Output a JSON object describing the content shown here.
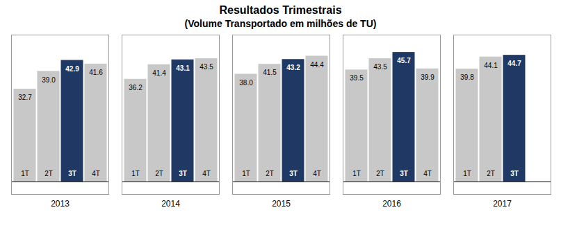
{
  "chart_data": {
    "type": "bar",
    "title": "Resultados Trimestrais",
    "subtitle": "(Volume Transportado em milhões de TU)",
    "categories": [
      "1T",
      "2T",
      "3T",
      "4T",
      "1T",
      "2T",
      "3T",
      "4T",
      "1T",
      "2T",
      "3T",
      "4T",
      "1T",
      "2T",
      "3T",
      "4T",
      "1T",
      "2T",
      "3T"
    ],
    "groups": [
      "2013",
      "2013",
      "2013",
      "2013",
      "2014",
      "2014",
      "2014",
      "2014",
      "2015",
      "2015",
      "2015",
      "2015",
      "2016",
      "2016",
      "2016",
      "2016",
      "2017",
      "2017",
      "2017"
    ],
    "values": [
      32.7,
      39.0,
      42.9,
      41.6,
      36.2,
      41.4,
      43.1,
      43.5,
      38.0,
      41.5,
      43.2,
      44.4,
      39.5,
      43.5,
      45.7,
      39.9,
      39.8,
      44.1,
      44.7
    ],
    "value_labels": [
      "32.7",
      "39.0",
      "42.9",
      "41.6",
      "36.2",
      "41.4",
      "43.1",
      "43.5",
      "38.0",
      "41.5",
      "43.2",
      "44.4",
      "39.5",
      "43.5",
      "45.7",
      "39.9",
      "39.8",
      "44.1",
      "44.7"
    ],
    "colors": [
      "#c8c8c8",
      "#c8c8c8",
      "#1f3864",
      "#c8c8c8",
      "#c8c8c8",
      "#c8c8c8",
      "#1f3864",
      "#c8c8c8",
      "#c8c8c8",
      "#c8c8c8",
      "#1f3864",
      "#c8c8c8",
      "#c8c8c8",
      "#c8c8c8",
      "#1f3864",
      "#c8c8c8",
      "#c8c8c8",
      "#c8c8c8",
      "#1f3864"
    ],
    "ylim": [
      -4.5,
      52
    ],
    "yticks": [],
    "grid": false,
    "data_labels": true,
    "tick_labels": "x"
  }
}
